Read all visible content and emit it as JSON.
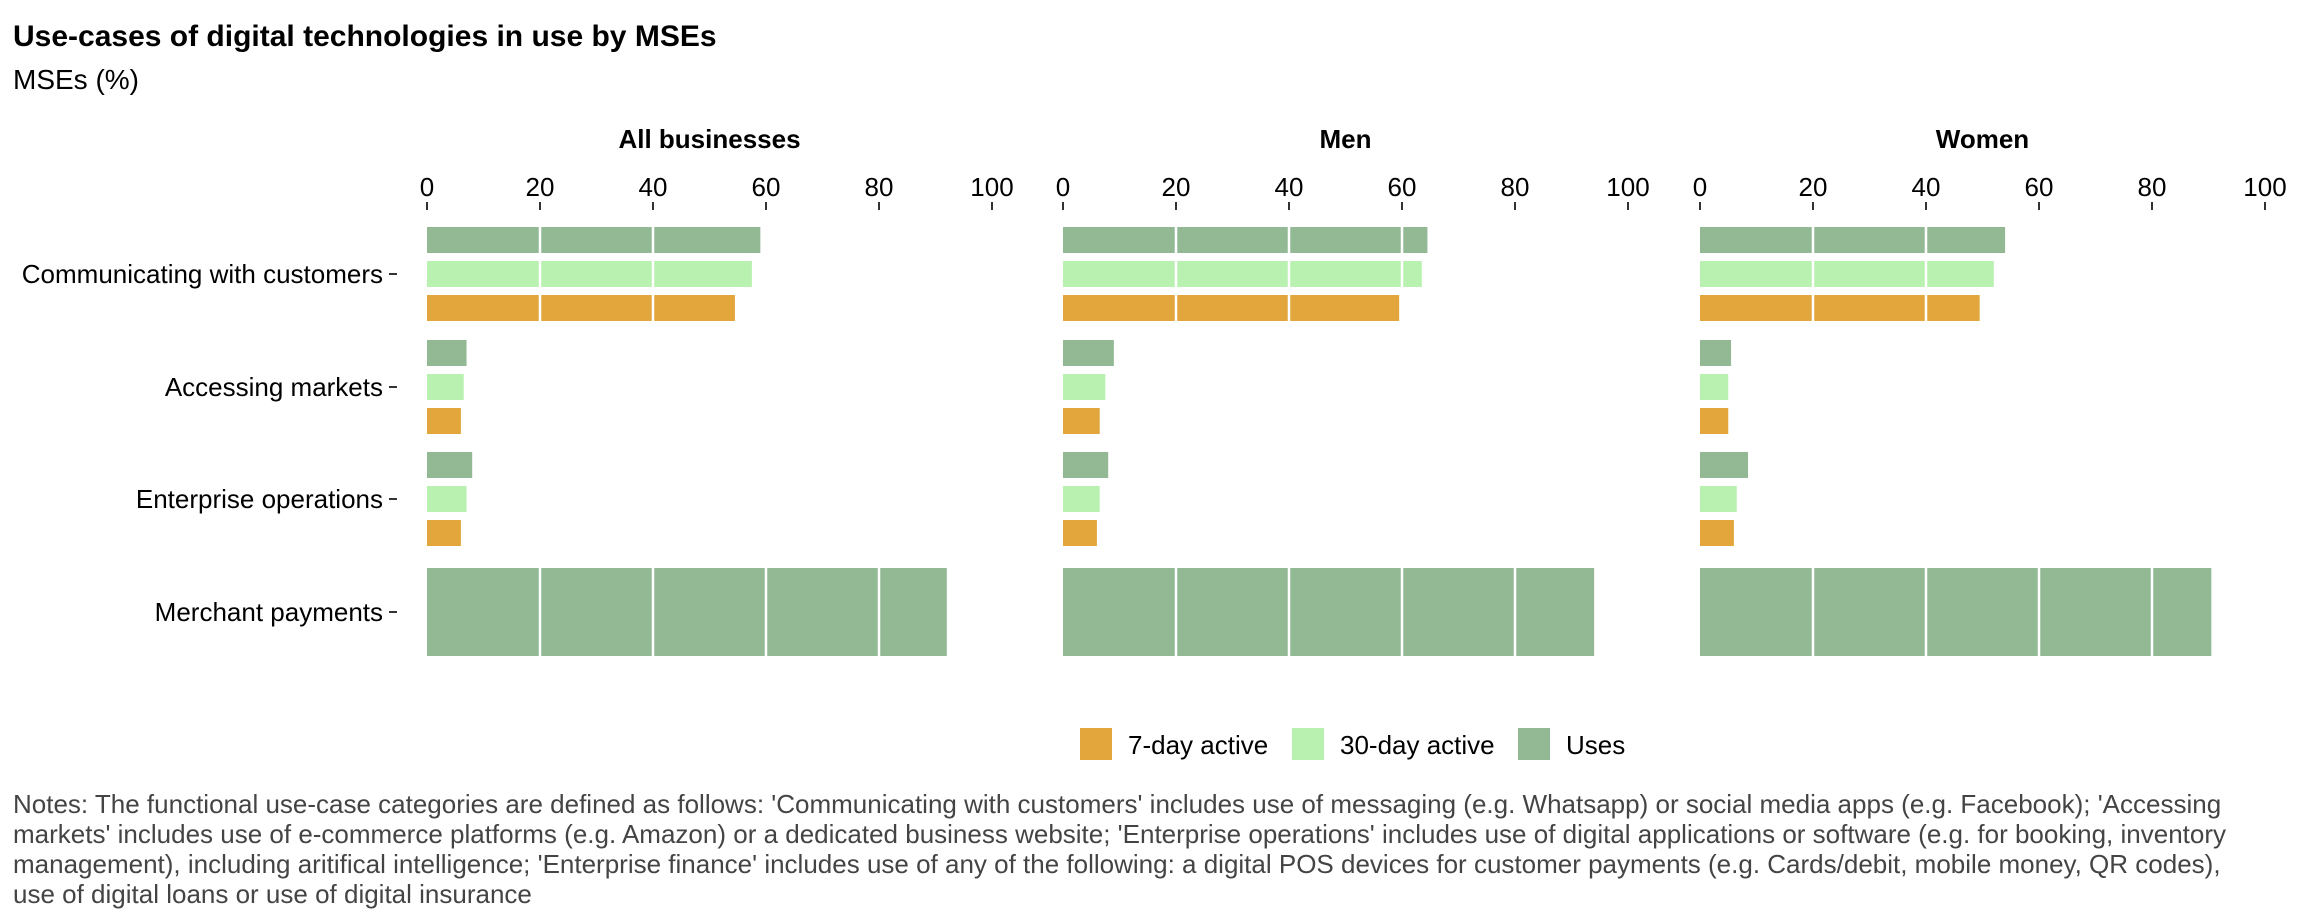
{
  "title": "Use-cases of digital technologies in use by MSEs",
  "subtitle": "MSEs (%)",
  "notes": "Notes: The functional use-case categories are defined as follows: 'Communicating with customers' includes use of messaging (e.g. Whatsapp) or social media apps (e.g. Facebook); 'Accessing markets' includes use of e-commerce platforms (e.g. Amazon) or a dedicated business website; 'Enterprise operations' includes use of digital applications or software (e.g. for booking, inventory management), including aritifical intelligence; 'Enterprise finance' includes use of any of the following: a digital POS devices for customer payments (e.g. Cards/debit, mobile money, QR codes), use of digital loans or use of digital insurance",
  "colors": {
    "7-day active": "#E3A63C",
    "30-day active": "#B9F1B0",
    "Uses": "#93B994"
  },
  "chart_data": {
    "type": "bar",
    "orientation": "horizontal",
    "categories": [
      "Communicating with customers",
      "Accessing markets",
      "Enterprise operations",
      "Merchant payments"
    ],
    "xlim": [
      0,
      100
    ],
    "x_ticks": [
      0,
      20,
      40,
      60,
      80,
      100
    ],
    "grid": "white lines across bars",
    "legend": {
      "position": "bottom",
      "entries": [
        "7-day active",
        "30-day active",
        "Uses"
      ]
    },
    "panels": [
      {
        "name": "All businesses",
        "series": [
          {
            "name": "Uses",
            "values": [
              59,
              7,
              8,
              92
            ]
          },
          {
            "name": "30-day active",
            "values": [
              57.5,
              6.5,
              7,
              null
            ]
          },
          {
            "name": "7-day active",
            "values": [
              54.5,
              6,
              6,
              null
            ]
          }
        ]
      },
      {
        "name": "Men",
        "series": [
          {
            "name": "Uses",
            "values": [
              64.5,
              9,
              8,
              94
            ]
          },
          {
            "name": "30-day active",
            "values": [
              63.5,
              7.5,
              6.5,
              null
            ]
          },
          {
            "name": "7-day active",
            "values": [
              59.5,
              6.5,
              6,
              null
            ]
          }
        ]
      },
      {
        "name": "Women",
        "series": [
          {
            "name": "Uses",
            "values": [
              54,
              5.5,
              8.5,
              90.5
            ]
          },
          {
            "name": "30-day active",
            "values": [
              52,
              5,
              6.5,
              null
            ]
          },
          {
            "name": "7-day active",
            "values": [
              49.5,
              5,
              6,
              null
            ]
          }
        ]
      }
    ]
  }
}
